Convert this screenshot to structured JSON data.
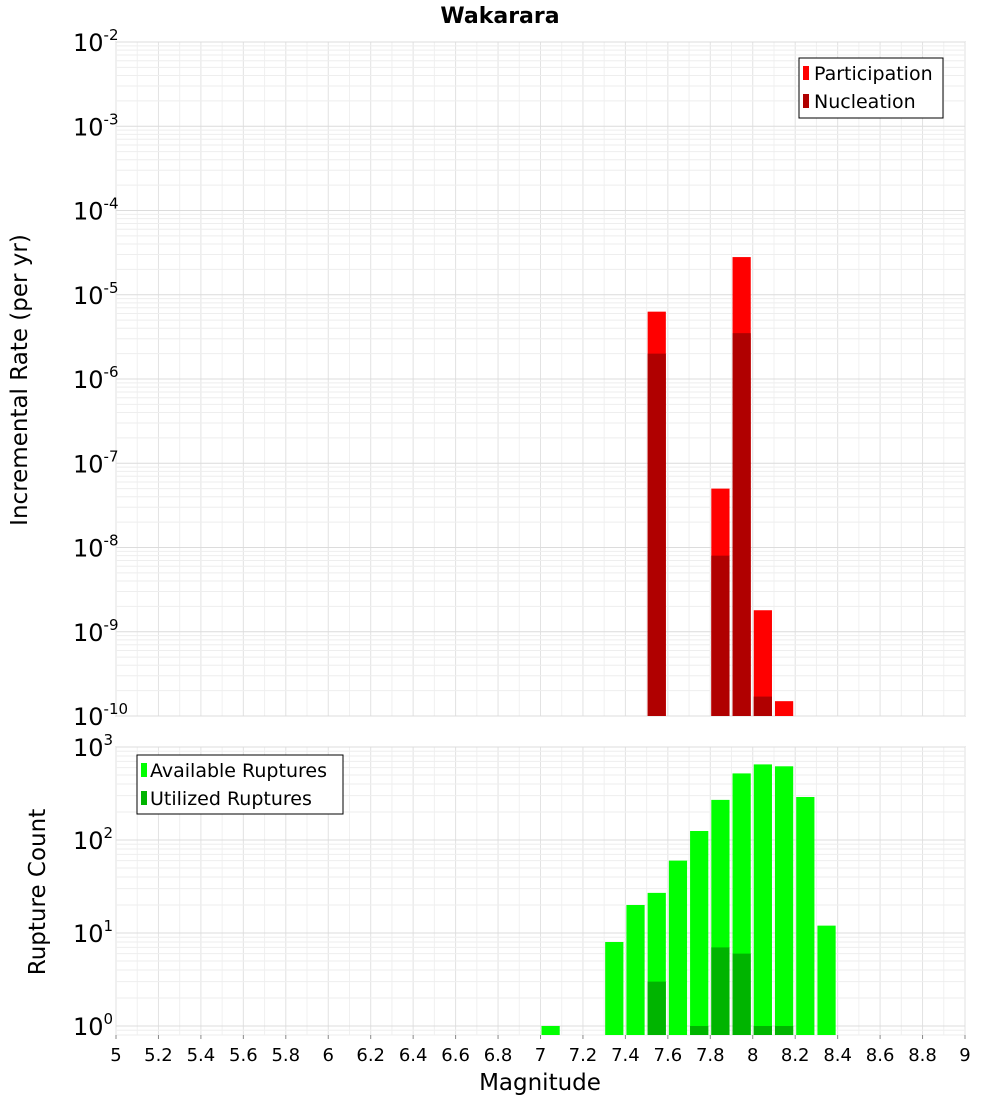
{
  "chart_data": [
    {
      "type": "bar",
      "title": "Wakarara",
      "xlabel": "",
      "ylabel": "Incremental Rate (per yr)",
      "yscale": "log",
      "ylim": [
        1e-10,
        0.01
      ],
      "xlim": [
        5,
        9
      ],
      "y_ticks": [
        {
          "base": "10",
          "exp": "-10",
          "value": 1e-10
        },
        {
          "base": "10",
          "exp": "-9",
          "value": 1e-09
        },
        {
          "base": "10",
          "exp": "-8",
          "value": 1e-08
        },
        {
          "base": "10",
          "exp": "-7",
          "value": 1e-07
        },
        {
          "base": "10",
          "exp": "-6",
          "value": 1e-06
        },
        {
          "base": "10",
          "exp": "-5",
          "value": 1e-05
        },
        {
          "base": "10",
          "exp": "-4",
          "value": 0.0001
        },
        {
          "base": "10",
          "exp": "-3",
          "value": 0.001
        },
        {
          "base": "10",
          "exp": "-2",
          "value": 0.01
        }
      ],
      "legend_position": "top-right",
      "bin_width": 0.1,
      "series": [
        {
          "name": "Participation",
          "color": "#ff0000",
          "x": [
            7.55,
            7.85,
            7.95,
            8.05,
            8.15
          ],
          "values": [
            6.3e-06,
            5e-08,
            2.8e-05,
            1.8e-09,
            1.5e-10
          ]
        },
        {
          "name": "Nucleation",
          "color": "#b00000",
          "x": [
            7.55,
            7.85,
            7.95,
            8.05
          ],
          "values": [
            2e-06,
            8e-09,
            3.5e-06,
            1.7e-10
          ]
        }
      ]
    },
    {
      "type": "bar",
      "title": "",
      "xlabel": "Magnitude",
      "ylabel": "Rupture Count",
      "yscale": "log",
      "ylim": [
        0.8,
        1000
      ],
      "xlim": [
        5,
        9
      ],
      "y_ticks": [
        {
          "base": "10",
          "exp": "0",
          "value": 1
        },
        {
          "base": "10",
          "exp": "1",
          "value": 10
        },
        {
          "base": "10",
          "exp": "2",
          "value": 100
        },
        {
          "base": "10",
          "exp": "3",
          "value": 1000
        }
      ],
      "x_ticks": [
        "5",
        "5.2",
        "5.4",
        "5.6",
        "5.8",
        "6",
        "6.2",
        "6.4",
        "6.6",
        "6.8",
        "7",
        "7.2",
        "7.4",
        "7.6",
        "7.8",
        "8",
        "8.2",
        "8.4",
        "8.6",
        "8.8",
        "9"
      ],
      "legend_position": "top-left",
      "bin_width": 0.1,
      "series": [
        {
          "name": "Available Ruptures",
          "color": "#00ff00",
          "x": [
            7.05,
            7.35,
            7.45,
            7.55,
            7.65,
            7.75,
            7.85,
            7.95,
            8.05,
            8.15,
            8.25,
            8.35
          ],
          "values": [
            1,
            8,
            20,
            27,
            60,
            125,
            270,
            520,
            650,
            620,
            290,
            12
          ]
        },
        {
          "name": "Utilized Ruptures",
          "color": "#00b400",
          "x": [
            7.55,
            7.75,
            7.85,
            7.95,
            8.05,
            8.15
          ],
          "values": [
            3,
            1,
            7,
            6,
            1,
            1
          ]
        }
      ]
    }
  ]
}
